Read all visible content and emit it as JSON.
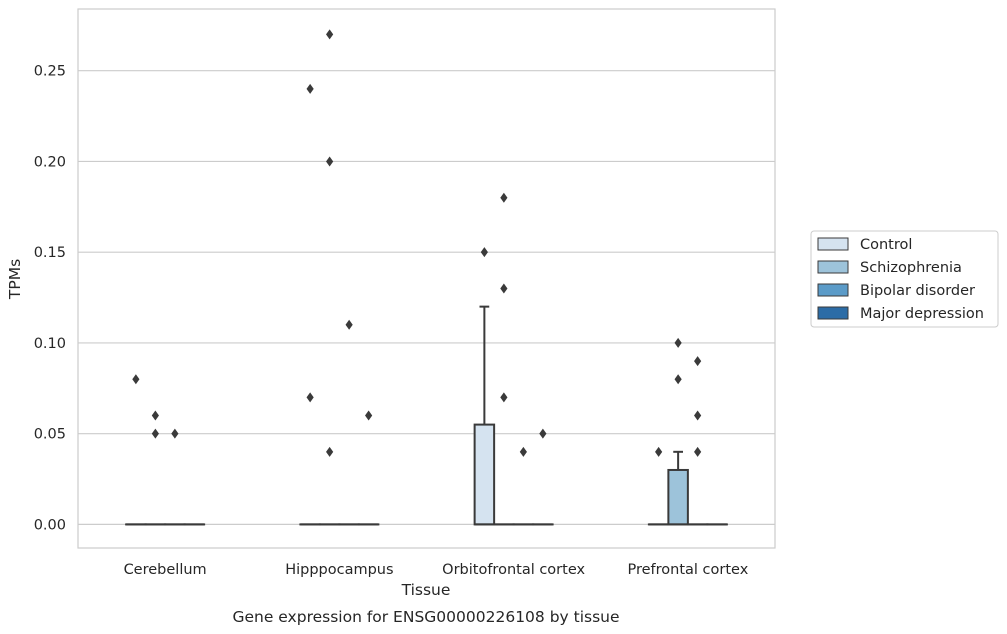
{
  "chart_data": {
    "type": "box",
    "caption": "Gene expression for ENSG00000226108 by tissue",
    "xlabel": "Tissue",
    "ylabel": "TPMs",
    "ylim": [
      -0.013,
      0.284
    ],
    "yticks": [
      0.0,
      0.05,
      0.1,
      0.15,
      0.2,
      0.25
    ],
    "ytick_labels": [
      "0.00",
      "0.05",
      "0.10",
      "0.15",
      "0.20",
      "0.25"
    ],
    "grid": "horizontal",
    "legend_position": "right",
    "categories": [
      "Cerebellum",
      "Hipppocampus",
      "Orbitofrontal cortex",
      "Prefrontal cortex"
    ],
    "series": [
      {
        "name": "Control",
        "color": "#d5e3f0",
        "boxes": [
          {
            "q1": 0,
            "median": 0,
            "q3": 0,
            "whisker_low": 0,
            "whisker_high": 0,
            "outliers": [
              0.08
            ]
          },
          {
            "q1": 0,
            "median": 0,
            "q3": 0,
            "whisker_low": 0,
            "whisker_high": 0,
            "outliers": [
              0.24,
              0.07
            ]
          },
          {
            "q1": 0,
            "median": 0,
            "q3": 0.055,
            "whisker_low": 0,
            "whisker_high": 0.12,
            "outliers": [
              0.15
            ]
          },
          {
            "q1": 0,
            "median": 0,
            "q3": 0,
            "whisker_low": 0,
            "whisker_high": 0,
            "outliers": [
              0.04
            ]
          }
        ]
      },
      {
        "name": "Schizophrenia",
        "color": "#9dc3da",
        "boxes": [
          {
            "q1": 0,
            "median": 0,
            "q3": 0,
            "whisker_low": 0,
            "whisker_high": 0,
            "outliers": [
              0.06,
              0.05
            ]
          },
          {
            "q1": 0,
            "median": 0,
            "q3": 0,
            "whisker_low": 0,
            "whisker_high": 0,
            "outliers": [
              0.27,
              0.2,
              0.04
            ]
          },
          {
            "q1": 0,
            "median": 0,
            "q3": 0,
            "whisker_low": 0,
            "whisker_high": 0,
            "outliers": [
              0.18,
              0.13,
              0.07
            ]
          },
          {
            "q1": 0,
            "median": 0,
            "q3": 0.03,
            "whisker_low": 0,
            "whisker_high": 0.04,
            "outliers": [
              0.1,
              0.08
            ]
          }
        ]
      },
      {
        "name": "Bipolar disorder",
        "color": "#5b9bc8",
        "boxes": [
          {
            "q1": 0,
            "median": 0,
            "q3": 0,
            "whisker_low": 0,
            "whisker_high": 0,
            "outliers": [
              0.05
            ]
          },
          {
            "q1": 0,
            "median": 0,
            "q3": 0,
            "whisker_low": 0,
            "whisker_high": 0,
            "outliers": [
              0.11
            ]
          },
          {
            "q1": 0,
            "median": 0,
            "q3": 0,
            "whisker_low": 0,
            "whisker_high": 0,
            "outliers": [
              0.04
            ]
          },
          {
            "q1": 0,
            "median": 0,
            "q3": 0,
            "whisker_low": 0,
            "whisker_high": 0,
            "outliers": [
              0.09,
              0.06,
              0.04
            ]
          }
        ]
      },
      {
        "name": "Major depression",
        "color": "#2c6ca6",
        "boxes": [
          {
            "q1": 0,
            "median": 0,
            "q3": 0,
            "whisker_low": 0,
            "whisker_high": 0,
            "outliers": []
          },
          {
            "q1": 0,
            "median": 0,
            "q3": 0,
            "whisker_low": 0,
            "whisker_high": 0,
            "outliers": [
              0.06
            ]
          },
          {
            "q1": 0,
            "median": 0,
            "q3": 0,
            "whisker_low": 0,
            "whisker_high": 0,
            "outliers": [
              0.05
            ]
          },
          {
            "q1": 0,
            "median": 0,
            "q3": 0,
            "whisker_low": 0,
            "whisker_high": 0,
            "outliers": []
          }
        ]
      }
    ]
  }
}
